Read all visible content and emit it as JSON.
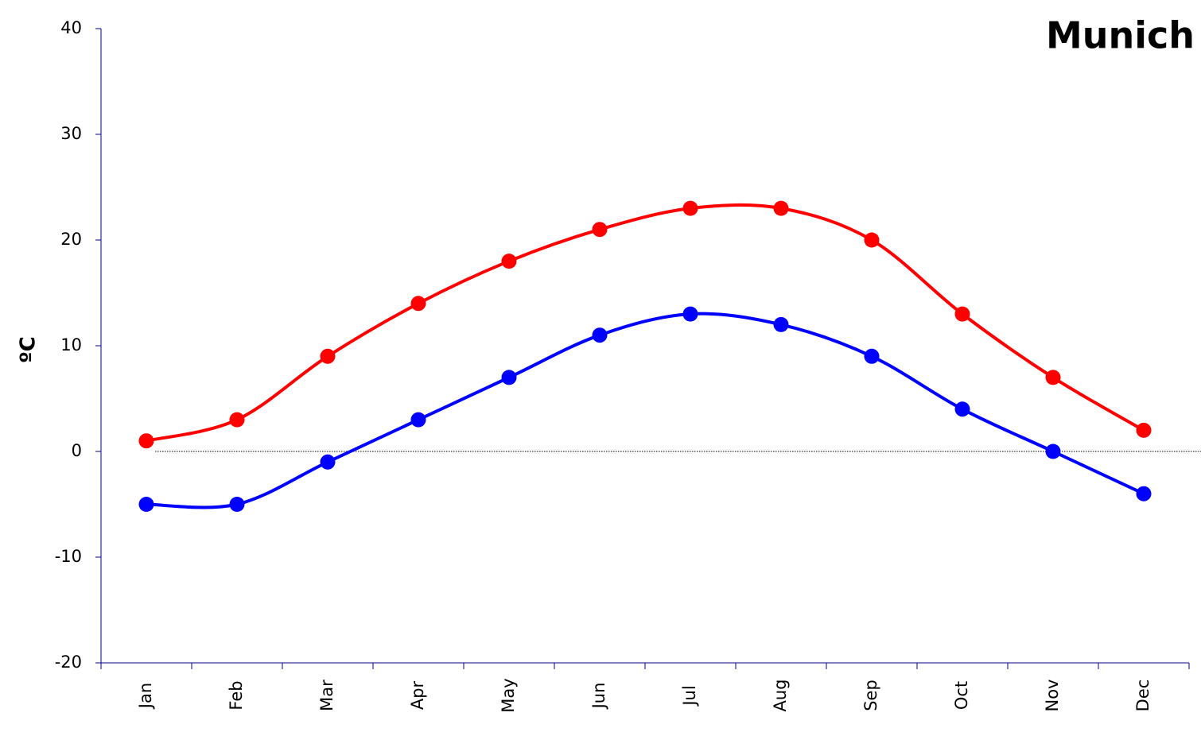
{
  "chart_data": {
    "type": "line",
    "title": "Munich",
    "y_label": "ºC",
    "categories": [
      "Jan",
      "Feb",
      "Mar",
      "Apr",
      "May",
      "Jun",
      "Jul",
      "Aug",
      "Sep",
      "Oct",
      "Nov",
      "Dec"
    ],
    "series": [
      {
        "color": "#ff0000",
        "values": [
          1,
          3,
          9,
          14,
          18,
          21,
          23,
          23,
          20,
          13,
          7,
          2
        ]
      },
      {
        "color": "#0000ff",
        "values": [
          -5,
          -5,
          -1,
          3,
          7,
          11,
          13,
          12,
          9,
          4,
          0,
          -4
        ]
      }
    ],
    "ylim": [
      -20,
      40
    ],
    "yticks": [
      -20,
      -10,
      0,
      10,
      20,
      30,
      40
    ],
    "grid": false
  }
}
